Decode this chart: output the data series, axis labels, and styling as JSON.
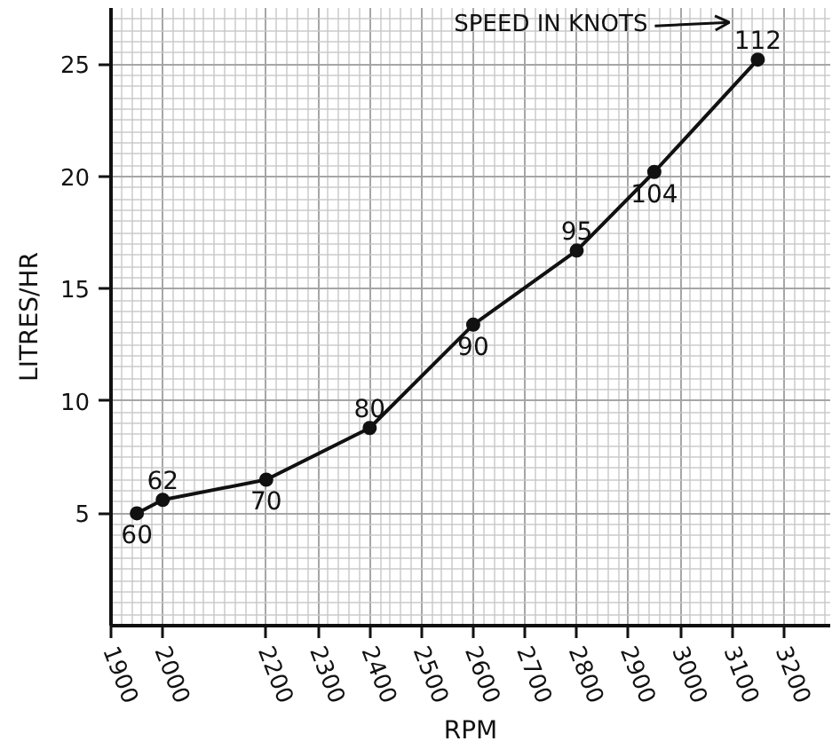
{
  "chart_data": {
    "type": "line",
    "xlabel": "RPM",
    "ylabel": "LITRES/HR",
    "annotations": [
      "SPEED IN KNOTS",
      {
        "text": "60",
        "x": 1950,
        "y": 5.0
      },
      {
        "text": "62",
        "x": 2000,
        "y": 5.6
      },
      {
        "text": "70",
        "x": 2200,
        "y": 6.5
      },
      {
        "text": "80",
        "x": 2400,
        "y": 8.8
      },
      {
        "text": "90",
        "x": 2600,
        "y": 13.4
      },
      {
        "text": "95",
        "x": 2800,
        "y": 16.7
      },
      {
        "text": "104",
        "x": 2950,
        "y": 20.2
      },
      {
        "text": "112",
        "x": 3150,
        "y": 25.2
      }
    ],
    "x": [
      1950,
      2000,
      2200,
      2400,
      2600,
      2800,
      2950,
      3150
    ],
    "series": [
      {
        "color": "#111111",
        "values": [
          5.0,
          5.6,
          6.5,
          8.8,
          13.4,
          16.7,
          20.2,
          25.2
        ]
      }
    ],
    "xlim": [
      1900,
      3290
    ],
    "ylim": [
      0,
      27.5
    ],
    "xticks": [
      1900,
      2000,
      2200,
      2300,
      2400,
      2500,
      2600,
      2700,
      2800,
      2900,
      3000,
      3100,
      3200
    ],
    "yticks": [
      5,
      10,
      15,
      20,
      25
    ],
    "grid": true,
    "marker": "circle",
    "line_style": "solid"
  }
}
